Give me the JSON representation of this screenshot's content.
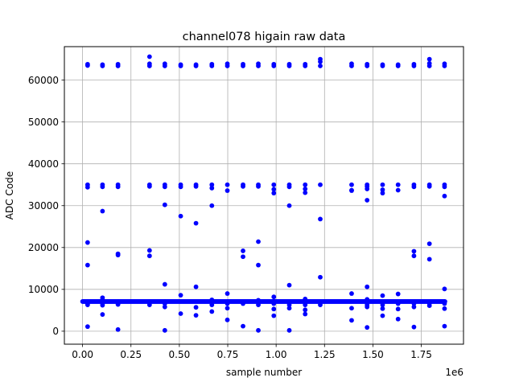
{
  "chart_data": {
    "type": "scatter",
    "title": "channel078 higain raw data",
    "xlabel": "sample number",
    "ylabel": "ADC Code",
    "x_offset_label": "1e6",
    "xlim": [
      -0.094,
      1.968
    ],
    "ylim": [
      -3100,
      68000
    ],
    "grid": true,
    "marker_color": "#0000ff",
    "x_ticks": [
      {
        "value": 0.0,
        "label": "0.00"
      },
      {
        "value": 0.25,
        "label": "0.25"
      },
      {
        "value": 0.5,
        "label": "0.50"
      },
      {
        "value": 0.75,
        "label": "0.75"
      },
      {
        "value": 1.0,
        "label": "1.00"
      },
      {
        "value": 1.25,
        "label": "1.25"
      },
      {
        "value": 1.5,
        "label": "1.50"
      },
      {
        "value": 1.75,
        "label": "1.75"
      }
    ],
    "y_ticks": [
      {
        "value": 0,
        "label": "0"
      },
      {
        "value": 10000,
        "label": "10000"
      },
      {
        "value": 20000,
        "label": "20000"
      },
      {
        "value": 30000,
        "label": "30000"
      },
      {
        "value": 40000,
        "label": "40000"
      },
      {
        "value": 50000,
        "label": "50000"
      },
      {
        "value": 60000,
        "label": "60000"
      }
    ],
    "baseline": {
      "y": 7100,
      "x_start": 0.0,
      "x_end": 1.875
    },
    "x": [
      0.026,
      0.026,
      0.026,
      0.026,
      0.026,
      0.026,
      0.026,
      0.026,
      0.026,
      0.026,
      0.103,
      0.103,
      0.103,
      0.103,
      0.103,
      0.103,
      0.103,
      0.103,
      0.103,
      0.103,
      0.103,
      0.183,
      0.183,
      0.183,
      0.183,
      0.183,
      0.183,
      0.183,
      0.183,
      0.183,
      0.346,
      0.346,
      0.346,
      0.346,
      0.346,
      0.346,
      0.346,
      0.346,
      0.346,
      0.425,
      0.425,
      0.425,
      0.425,
      0.425,
      0.425,
      0.425,
      0.425,
      0.425,
      0.425,
      0.507,
      0.507,
      0.507,
      0.507,
      0.507,
      0.507,
      0.507,
      0.586,
      0.586,
      0.586,
      0.586,
      0.586,
      0.586,
      0.586,
      0.586,
      0.668,
      0.668,
      0.668,
      0.668,
      0.668,
      0.668,
      0.668,
      0.668,
      0.748,
      0.748,
      0.748,
      0.748,
      0.748,
      0.748,
      0.748,
      0.748,
      0.748,
      0.829,
      0.829,
      0.829,
      0.829,
      0.829,
      0.829,
      0.829,
      0.829,
      0.908,
      0.908,
      0.908,
      0.908,
      0.908,
      0.908,
      0.908,
      0.908,
      0.908,
      0.988,
      0.988,
      0.988,
      0.988,
      0.988,
      0.988,
      0.988,
      0.988,
      0.988,
      1.068,
      1.068,
      1.068,
      1.068,
      1.068,
      1.068,
      1.068,
      1.068,
      1.068,
      1.15,
      1.15,
      1.15,
      1.15,
      1.15,
      1.15,
      1.15,
      1.15,
      1.15,
      1.228,
      1.228,
      1.228,
      1.228,
      1.228,
      1.228,
      1.228,
      1.39,
      1.39,
      1.39,
      1.39,
      1.39,
      1.39,
      1.39,
      1.39,
      1.47,
      1.47,
      1.47,
      1.47,
      1.47,
      1.47,
      1.47,
      1.47,
      1.47,
      1.47,
      1.47,
      1.55,
      1.55,
      1.55,
      1.55,
      1.55,
      1.55,
      1.55,
      1.55,
      1.55,
      1.63,
      1.63,
      1.63,
      1.63,
      1.63,
      1.63,
      1.63,
      1.63,
      1.712,
      1.712,
      1.712,
      1.712,
      1.712,
      1.712,
      1.712,
      1.712,
      1.712,
      1.792,
      1.792,
      1.792,
      1.792,
      1.792,
      1.792,
      1.792,
      1.792,
      1.792,
      1.87,
      1.87,
      1.87,
      1.87,
      1.87,
      1.87,
      1.87,
      1.87,
      1.87
    ],
    "y": [
      63500,
      63800,
      35000,
      34400,
      21200,
      15800,
      6600,
      6300,
      1100,
      7100,
      63400,
      63700,
      35000,
      34500,
      28700,
      8000,
      6600,
      6200,
      4000,
      7100,
      7500,
      63400,
      63800,
      35000,
      34500,
      18500,
      18200,
      6400,
      400,
      7100,
      65600,
      63900,
      63400,
      35000,
      34600,
      19300,
      18000,
      6300,
      7100,
      63400,
      63900,
      35000,
      34500,
      30200,
      11200,
      6600,
      5800,
      200,
      7100,
      63400,
      63700,
      35000,
      34500,
      27500,
      8600,
      4200,
      63400,
      63700,
      35000,
      34600,
      25800,
      10600,
      5700,
      3800,
      63400,
      63800,
      35000,
      34200,
      30000,
      7500,
      6300,
      4700,
      63400,
      63900,
      35000,
      33600,
      9000,
      6600,
      5500,
      2700,
      7100,
      63400,
      63800,
      35000,
      34600,
      19200,
      17800,
      6600,
      1200,
      63400,
      63900,
      35000,
      34600,
      21400,
      15800,
      7400,
      6300,
      200,
      63400,
      63800,
      35000,
      33900,
      33000,
      8200,
      6600,
      5300,
      3700,
      63400,
      63800,
      35000,
      34500,
      30000,
      11000,
      6300,
      5500,
      200,
      63400,
      63800,
      35000,
      34000,
      33100,
      7700,
      6300,
      5100,
      4100,
      65000,
      64400,
      63400,
      35000,
      26800,
      12900,
      6300,
      63400,
      63900,
      35000,
      33700,
      33600,
      9000,
      5500,
      2600,
      63400,
      63800,
      35000,
      34600,
      34000,
      31300,
      10600,
      7600,
      6300,
      5800,
      900,
      63400,
      63700,
      35000,
      33800,
      33000,
      8500,
      6300,
      5400,
      3700,
      63400,
      63700,
      35000,
      33700,
      8900,
      6600,
      5300,
      2900,
      63400,
      63800,
      35000,
      34500,
      19100,
      18000,
      6600,
      5800,
      1000,
      65000,
      64000,
      63400,
      35000,
      34600,
      20900,
      17200,
      6600,
      6100,
      63400,
      63900,
      35000,
      34500,
      32300,
      10100,
      6600,
      5400,
      1200
    ]
  }
}
